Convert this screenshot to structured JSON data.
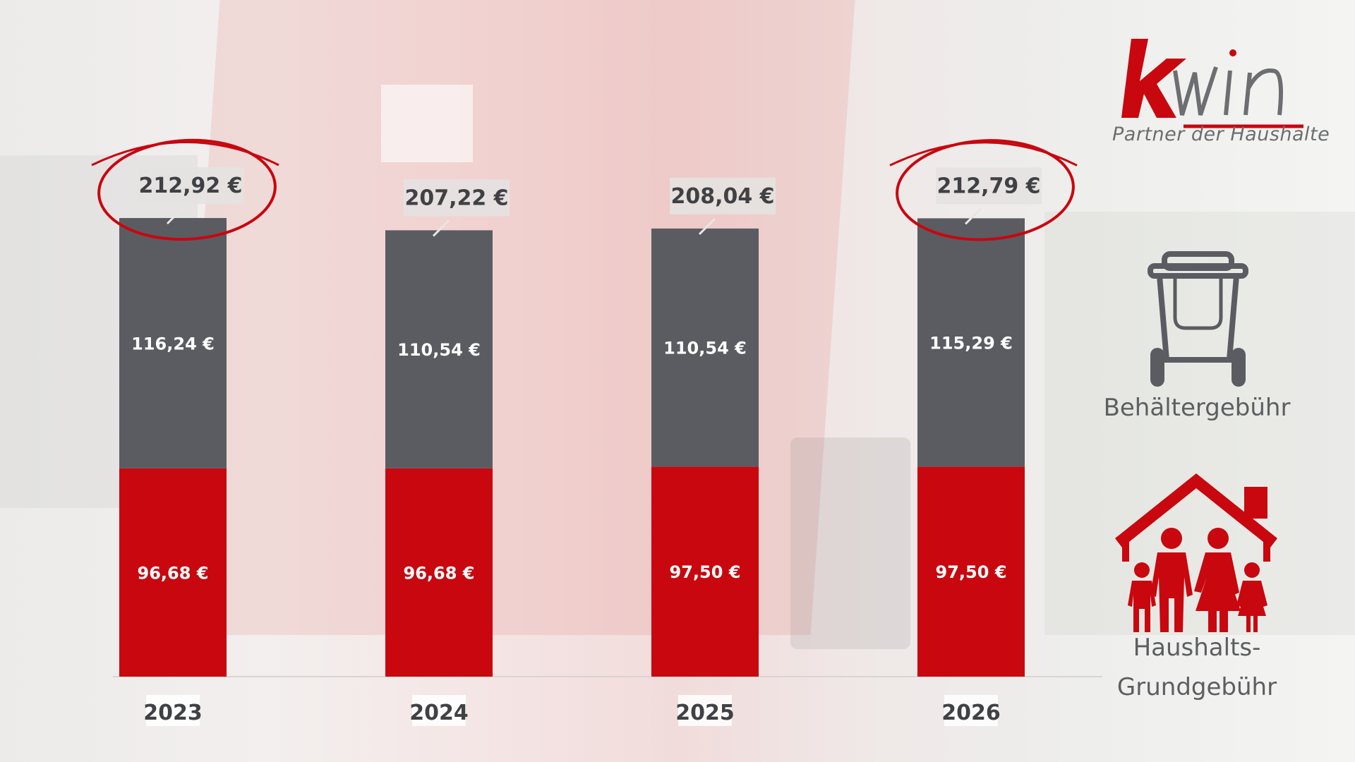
{
  "logo": {
    "text": "kwin",
    "tagline": "Partner der Haushalte"
  },
  "legend": {
    "container_fee": {
      "label": "Behältergebühr",
      "icon": "waste-bin-icon",
      "color": "#5b5c61"
    },
    "household_fee": {
      "label_line1": "Haushalts-",
      "label_line2": "Grundgebühr",
      "icon": "family-house-icon",
      "color": "#c8070f"
    }
  },
  "chart_data": {
    "type": "bar",
    "stacked": true,
    "categories": [
      "2023",
      "2024",
      "2025",
      "2026"
    ],
    "series": [
      {
        "name": "Haushalts-Grundgebühr",
        "values": [
          96.68,
          96.68,
          97.5,
          97.5
        ],
        "labels": [
          "96,68 €",
          "96,68 €",
          "97,50 €",
          "97,50 €"
        ],
        "color": "#c8070f"
      },
      {
        "name": "Behältergebühr",
        "values": [
          116.24,
          110.54,
          110.54,
          115.29
        ],
        "labels": [
          "116,24 €",
          "110,54 €",
          "110,54 €",
          "115,29 €"
        ],
        "color": "#5b5c61"
      }
    ],
    "totals": [
      212.92,
      207.22,
      208.04,
      212.79
    ],
    "total_labels": [
      "212,92 €",
      "207,22 €",
      "208,04 €",
      "212,79 €"
    ],
    "highlighted_totals": [
      "2023",
      "2026"
    ],
    "highlight_color": "#c8070f",
    "ylim": [
      0,
      212.92
    ],
    "grid": false,
    "legend_placement": "right"
  }
}
